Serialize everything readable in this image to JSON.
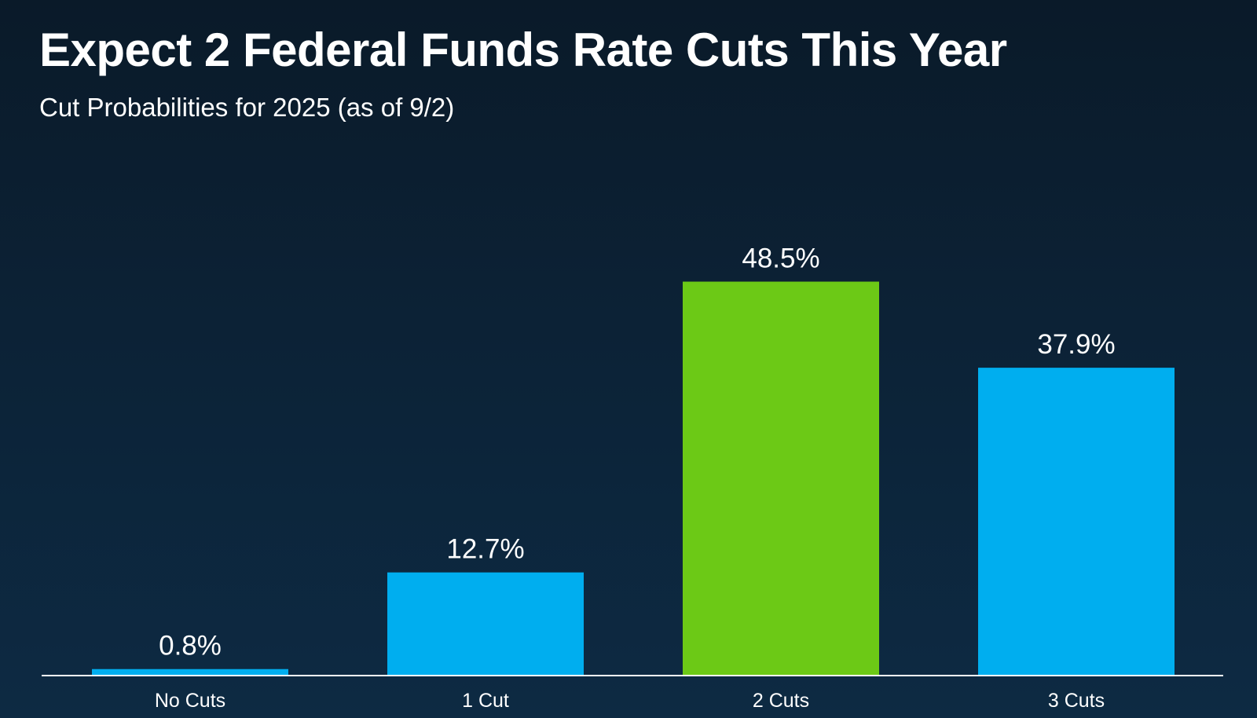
{
  "chart_data": {
    "type": "bar",
    "title": "Expect 2 Federal Funds Rate Cuts This Year",
    "subtitle": "Cut Probabilities for 2025 (as of 9/2)",
    "categories": [
      "No Cuts",
      "1 Cut",
      "2 Cuts",
      "3 Cuts"
    ],
    "values": [
      0.8,
      12.7,
      48.5,
      37.9
    ],
    "value_labels": [
      "0.8%",
      "12.7%",
      "48.5%",
      "37.9%"
    ],
    "bar_colors": [
      "#00aeef",
      "#00aeef",
      "#6cc916",
      "#00aeef"
    ],
    "xlabel": "",
    "ylabel": "",
    "ylim": [
      0,
      60
    ],
    "grid": false,
    "legend": "none"
  },
  "colors": {
    "background_top": "#0a1a29",
    "background_bottom": "#0d2a43",
    "primary_bar": "#00aeef",
    "highlight_bar": "#6cc916",
    "text": "#ffffff"
  }
}
